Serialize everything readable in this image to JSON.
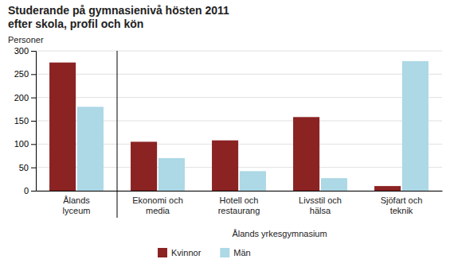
{
  "chart_data": {
    "type": "bar",
    "title": "Studerande på gymnasienivå hösten 2011\nefter skola, profil och kön",
    "ylabel": "Personer",
    "categories": [
      "Ålands\nlyceum",
      "Ekonomi och\nmedia",
      "Hotell och\nrestaurang",
      "Livsstil och\nhälsa",
      "Sjöfart och\nteknik"
    ],
    "annotations": [
      "Ålands yrkesgymnasium"
    ],
    "series": [
      {
        "name": "Kvinnor",
        "color": "#8B2323",
        "values": [
          275,
          105,
          108,
          158,
          10
        ]
      },
      {
        "name": "Män",
        "color": "#ADD8E6",
        "values": [
          180,
          70,
          42,
          27,
          278
        ]
      }
    ],
    "ylim": [
      0,
      300
    ],
    "yticks": [
      0,
      50,
      100,
      150,
      200,
      250,
      300
    ],
    "grid": true,
    "legend": "bottom"
  }
}
